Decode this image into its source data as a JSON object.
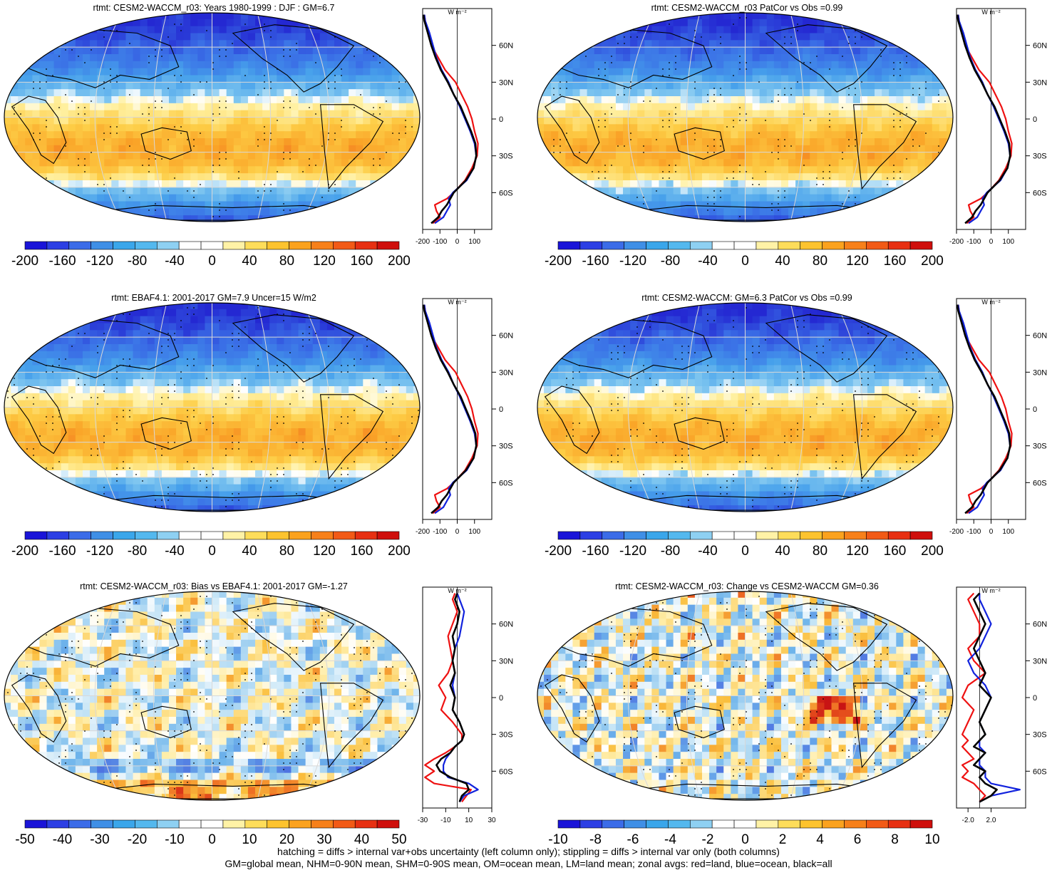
{
  "figure": {
    "footer": [
      "hatching = diffs > internal var+obs uncertainty (left column only); stippling = diffs > internal var only (both columns)",
      "GM=global mean, NHM=0-90N mean, SHM=0-90S mean, OM=ocean mean, LM=land mean; zonal avgs: red=land, blue=ocean, black=all"
    ],
    "profile_unit": "W m⁻²",
    "lat_ticks": [
      "60N",
      "30N",
      "0",
      "30S",
      "60S"
    ],
    "colorbar_colors": [
      "#1a14d8",
      "#2c3fe4",
      "#3b6ce8",
      "#3f8fe6",
      "#3aa6ea",
      "#54b8ee",
      "#8ed0f2",
      "#ffffff",
      "#ffffff",
      "#fff2a6",
      "#fedd5a",
      "#fdc32e",
      "#fba21e",
      "#f7801a",
      "#f25a16",
      "#e73012",
      "#cf0f0c"
    ],
    "colors": {
      "land": "#ee1111",
      "ocean": "#1122dd",
      "all": "#000000"
    }
  },
  "chart_data": [
    {
      "type": "heatmap",
      "id": "p1",
      "title": "rtmt: CESM2-WACCM_r03: Years 1980-1999 : DJF : GM=6.7",
      "field": "rtmt",
      "colorbar_ticks": [
        "-200",
        "-160",
        "-120",
        "-80",
        "-40",
        "0",
        "40",
        "80",
        "120",
        "160",
        "200"
      ],
      "profile_xticks": [
        "-200",
        "-100",
        "0",
        "100"
      ],
      "profile_xlim": [
        -200,
        200
      ],
      "lat_ticks": [
        "60N",
        "30N",
        "0",
        "30S",
        "60S"
      ],
      "zonal_mean": {
        "lat": [
          -85,
          -80,
          -75,
          -70,
          -65,
          -60,
          -50,
          -40,
          -30,
          -20,
          -10,
          0,
          10,
          20,
          30,
          40,
          50,
          60,
          70,
          80,
          85
        ],
        "all": [
          -150,
          -110,
          -90,
          -60,
          -40,
          -20,
          50,
          95,
          110,
          105,
          80,
          50,
          20,
          -20,
          -55,
          -95,
          -125,
          -150,
          -170,
          -190,
          -195
        ],
        "land": [
          -140,
          -100,
          -120,
          -130,
          -60,
          -20,
          45,
          85,
          115,
          120,
          100,
          85,
          60,
          25,
          -10,
          -70,
          -110,
          -150,
          -170,
          -185,
          -190
        ],
        "ocean": [
          -130,
          -80,
          -60,
          -40,
          -50,
          -25,
          55,
          95,
          110,
          100,
          75,
          45,
          15,
          -20,
          -50,
          -90,
          -120,
          -140,
          -160,
          -185,
          -190
        ]
      }
    },
    {
      "type": "heatmap",
      "id": "p2",
      "title": "rtmt: CESM2-WACCM_r03 PatCor vs Obs =0.99",
      "field": "rtmt",
      "colorbar_ticks": [
        "-200",
        "-160",
        "-120",
        "-80",
        "-40",
        "0",
        "40",
        "80",
        "120",
        "160",
        "200"
      ],
      "profile_xticks": [
        "-200",
        "-100",
        "0",
        "100"
      ],
      "profile_xlim": [
        -200,
        200
      ],
      "lat_ticks": [
        "60N",
        "30N",
        "0",
        "30S",
        "60S"
      ],
      "zonal_mean": {
        "lat": [
          -85,
          -80,
          -75,
          -70,
          -65,
          -60,
          -50,
          -40,
          -30,
          -20,
          -10,
          0,
          10,
          20,
          30,
          40,
          50,
          60,
          70,
          80,
          85
        ],
        "all": [
          -150,
          -110,
          -90,
          -60,
          -40,
          -20,
          50,
          95,
          110,
          105,
          80,
          50,
          20,
          -20,
          -55,
          -95,
          -125,
          -150,
          -170,
          -190,
          -195
        ],
        "land": [
          -140,
          -100,
          -120,
          -130,
          -60,
          -20,
          45,
          85,
          115,
          120,
          100,
          85,
          60,
          25,
          -10,
          -70,
          -110,
          -150,
          -170,
          -185,
          -190
        ],
        "ocean": [
          -130,
          -80,
          -60,
          -40,
          -50,
          -25,
          55,
          95,
          110,
          100,
          75,
          45,
          15,
          -20,
          -50,
          -90,
          -120,
          -140,
          -160,
          -185,
          -190
        ]
      }
    },
    {
      "type": "heatmap",
      "id": "p3",
      "title": "rtmt: EBAF4.1: 2001-2017 GM=7.9 Uncer=15 W/m2",
      "field": "rtmt",
      "colorbar_ticks": [
        "-200",
        "-160",
        "-120",
        "-80",
        "-40",
        "0",
        "40",
        "80",
        "120",
        "160",
        "200"
      ],
      "profile_xticks": [
        "-200",
        "-100",
        "0",
        "100"
      ],
      "profile_xlim": [
        -200,
        200
      ],
      "lat_ticks": [
        "60N",
        "30N",
        "0",
        "30S",
        "60S"
      ],
      "zonal_mean": {
        "lat": [
          -85,
          -80,
          -75,
          -70,
          -65,
          -60,
          -50,
          -40,
          -30,
          -20,
          -10,
          0,
          10,
          20,
          30,
          40,
          50,
          60,
          70,
          80,
          85
        ],
        "all": [
          -150,
          -110,
          -90,
          -60,
          -40,
          -20,
          50,
          95,
          110,
          105,
          80,
          50,
          20,
          -20,
          -55,
          -95,
          -125,
          -150,
          -170,
          -190,
          -195
        ],
        "land": [
          -140,
          -100,
          -120,
          -130,
          -60,
          -20,
          45,
          85,
          115,
          120,
          100,
          85,
          60,
          25,
          -10,
          -70,
          -110,
          -150,
          -170,
          -185,
          -190
        ],
        "ocean": [
          -130,
          -80,
          -60,
          -40,
          -50,
          -25,
          55,
          95,
          110,
          100,
          75,
          45,
          15,
          -20,
          -50,
          -90,
          -120,
          -140,
          -160,
          -185,
          -190
        ]
      }
    },
    {
      "type": "heatmap",
      "id": "p4",
      "title": "rtmt: CESM2-WACCM: GM=6.3 PatCor vs Obs =0.99",
      "field": "rtmt",
      "colorbar_ticks": [
        "-200",
        "-160",
        "-120",
        "-80",
        "-40",
        "0",
        "40",
        "80",
        "120",
        "160",
        "200"
      ],
      "profile_xticks": [
        "-200",
        "-100",
        "0",
        "100"
      ],
      "profile_xlim": [
        -200,
        200
      ],
      "lat_ticks": [
        "60N",
        "30N",
        "0",
        "30S",
        "60S"
      ],
      "zonal_mean": {
        "lat": [
          -85,
          -80,
          -75,
          -70,
          -65,
          -60,
          -50,
          -40,
          -30,
          -20,
          -10,
          0,
          10,
          20,
          30,
          40,
          50,
          60,
          70,
          80,
          85
        ],
        "all": [
          -150,
          -110,
          -90,
          -60,
          -40,
          -20,
          50,
          95,
          110,
          105,
          80,
          50,
          20,
          -20,
          -55,
          -95,
          -125,
          -150,
          -170,
          -190,
          -195
        ],
        "land": [
          -140,
          -100,
          -120,
          -130,
          -60,
          -20,
          45,
          85,
          115,
          120,
          100,
          85,
          60,
          25,
          -10,
          -70,
          -110,
          -150,
          -170,
          -185,
          -190
        ],
        "ocean": [
          -130,
          -80,
          -60,
          -40,
          -50,
          -25,
          55,
          95,
          110,
          100,
          75,
          45,
          15,
          -20,
          -50,
          -90,
          -120,
          -140,
          -160,
          -185,
          -190
        ]
      }
    },
    {
      "type": "heatmap",
      "id": "p5",
      "title": "rtmt: CESM2-WACCM_r03: Bias vs EBAF4.1: 2001-2017 GM=-1.27",
      "field": "bias",
      "colorbar_ticks": [
        "-50",
        "-40",
        "-30",
        "-20",
        "-10",
        "0",
        "10",
        "20",
        "30",
        "40",
        "50"
      ],
      "profile_xticks": [
        "-30",
        "-10",
        "10",
        "30"
      ],
      "profile_xlim": [
        -30,
        30
      ],
      "lat_ticks": [
        "60N",
        "30N",
        "0",
        "30S",
        "60S"
      ],
      "zonal_mean": {
        "lat": [
          -85,
          -80,
          -75,
          -70,
          -65,
          -60,
          -55,
          -50,
          -45,
          -40,
          -35,
          -30,
          -20,
          -10,
          0,
          10,
          20,
          30,
          40,
          50,
          60,
          70,
          80,
          85
        ],
        "all": [
          2,
          4,
          10,
          8,
          -6,
          -15,
          -18,
          -14,
          -6,
          -2,
          4,
          6,
          2,
          -4,
          -2,
          -6,
          -2,
          -4,
          -2,
          -4,
          0,
          2,
          -2,
          0
        ],
        "land": [
          4,
          8,
          12,
          -20,
          -28,
          -20,
          -28,
          -20,
          -10,
          -2,
          4,
          4,
          -4,
          -14,
          -10,
          -16,
          -8,
          -4,
          -6,
          -8,
          -4,
          0,
          -4,
          -2
        ],
        "ocean": [
          2,
          6,
          18,
          10,
          -8,
          -12,
          -12,
          -10,
          -6,
          -2,
          4,
          6,
          2,
          -4,
          -2,
          -4,
          -2,
          -4,
          -2,
          2,
          4,
          6,
          2,
          0
        ]
      }
    },
    {
      "type": "heatmap",
      "id": "p6",
      "title": "rtmt: CESM2-WACCM_r03: Change vs CESM2-WACCM GM=0.36",
      "field": "change",
      "colorbar_ticks": [
        "-10",
        "-8",
        "-6",
        "-4",
        "-2",
        "0",
        "2",
        "4",
        "6",
        "8",
        "10"
      ],
      "profile_xticks": [
        "-2.0",
        "2.0"
      ],
      "profile_xlim": [
        -4,
        8
      ],
      "lat_ticks": [
        "60N",
        "30N",
        "0",
        "30S",
        "60S"
      ],
      "zonal_mean": {
        "lat": [
          -85,
          -80,
          -75,
          -70,
          -65,
          -60,
          -55,
          -50,
          -45,
          -40,
          -35,
          -30,
          -20,
          -10,
          0,
          10,
          20,
          30,
          40,
          50,
          60,
          70,
          80,
          85
        ],
        "all": [
          0,
          2,
          3,
          1,
          0,
          1,
          -1,
          0,
          1,
          -1,
          0,
          1,
          0,
          1,
          2,
          0,
          1,
          0,
          -1,
          0,
          1,
          0,
          -1,
          0
        ],
        "land": [
          0,
          1,
          0,
          -1,
          -3,
          -2,
          -3,
          -1,
          -2,
          -3,
          -2,
          -3,
          -2,
          -1,
          -3,
          -2,
          1,
          -1,
          -2,
          0,
          0,
          -1,
          -2,
          -1
        ],
        "ocean": [
          0,
          2,
          7,
          2,
          1,
          1,
          0,
          0,
          1,
          0,
          0,
          1,
          0,
          1,
          2,
          1,
          -1,
          -2,
          0,
          1,
          2,
          1,
          0,
          0
        ]
      }
    }
  ]
}
